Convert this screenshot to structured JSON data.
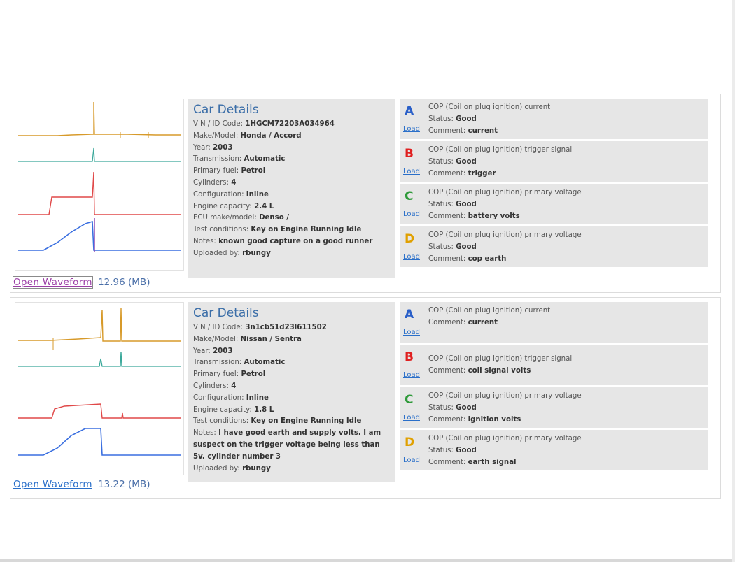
{
  "records": [
    {
      "car_details": {
        "heading": "Car Details",
        "vin": {
          "label": "VIN / ID Code:",
          "value": "1HGCM72203A034964"
        },
        "make_model": {
          "label": "Make/Model:",
          "value": "Honda / Accord"
        },
        "year": {
          "label": "Year:",
          "value": "2003"
        },
        "transmission": {
          "label": "Transmission:",
          "value": "Automatic"
        },
        "primary_fuel": {
          "label": "Primary fuel:",
          "value": "Petrol"
        },
        "cylinders": {
          "label": "Cylinders:",
          "value": "4"
        },
        "configuration": {
          "label": "Configuration:",
          "value": "Inline"
        },
        "engine_capacity": {
          "label": "Engine capacity:",
          "value": "2.4 L"
        },
        "ecu": {
          "label": "ECU make/model:",
          "value": "Denso /"
        },
        "test_conditions": {
          "label": "Test conditions:",
          "value": "Key on Engine Running Idle"
        },
        "notes": {
          "label": "Notes:",
          "value": "known good capture on a good runner"
        },
        "uploaded_by": {
          "label": "Uploaded by:",
          "value": "rbungy"
        }
      },
      "open_waveform": {
        "label": "Open Waveform",
        "size": "12.96 (MB)"
      },
      "channels": [
        {
          "letter": "A",
          "color": "#2a5fc8",
          "title": "COP (Coil on plug ignition) current",
          "status_label": "Status:",
          "status": "Good",
          "comment_label": "Comment:",
          "comment": "current",
          "load": "Load"
        },
        {
          "letter": "B",
          "color": "#e02020",
          "title": "COP (Coil on plug ignition) trigger signal",
          "status_label": "Status:",
          "status": "Good",
          "comment_label": "Comment:",
          "comment": "trigger",
          "load": "Load"
        },
        {
          "letter": "C",
          "color": "#2f9a3a",
          "title": "COP (Coil on plug ignition) primary voltage",
          "status_label": "Status:",
          "status": "Good",
          "comment_label": "Comment:",
          "comment": "battery volts",
          "load": "Load"
        },
        {
          "letter": "D",
          "color": "#e0a000",
          "title": "COP (Coil on plug ignition) primary voltage",
          "status_label": "Status:",
          "status": "Good",
          "comment_label": "Comment:",
          "comment": "cop earth",
          "load": "Load"
        }
      ]
    },
    {
      "car_details": {
        "heading": "Car Details",
        "vin": {
          "label": "VIN / ID Code:",
          "value": "3n1cb51d23l611502"
        },
        "make_model": {
          "label": "Make/Model:",
          "value": "Nissan / Sentra"
        },
        "year": {
          "label": "Year:",
          "value": "2003"
        },
        "transmission": {
          "label": "Transmission:",
          "value": "Automatic"
        },
        "primary_fuel": {
          "label": "Primary fuel:",
          "value": "Petrol"
        },
        "cylinders": {
          "label": "Cylinders:",
          "value": "4"
        },
        "configuration": {
          "label": "Configuration:",
          "value": "Inline"
        },
        "engine_capacity": {
          "label": "Engine capacity:",
          "value": "1.8 L"
        },
        "test_conditions": {
          "label": "Test conditions:",
          "value": "Key on Engine Running Idle"
        },
        "notes": {
          "label": "Notes:",
          "value": "I have good earth and supply volts. I am suspect on the trigger voltage being less than 5v. cylinder number 3"
        },
        "uploaded_by": {
          "label": "Uploaded by:",
          "value": "rbungy"
        }
      },
      "open_waveform": {
        "label": "Open Waveform",
        "size": "13.22 (MB)"
      },
      "channels": [
        {
          "letter": "A",
          "color": "#2a5fc8",
          "title": "COP (Coil on plug ignition) current",
          "status_label": "",
          "status": "",
          "comment_label": "Comment:",
          "comment": "current",
          "load": "Load"
        },
        {
          "letter": "B",
          "color": "#e02020",
          "title": "COP (Coil on plug ignition) trigger signal",
          "status_label": "",
          "status": "",
          "comment_label": "Comment:",
          "comment": "coil signal volts",
          "load": "Load"
        },
        {
          "letter": "C",
          "color": "#2f9a3a",
          "title": "COP (Coil on plug ignition) primary voltage",
          "status_label": "Status:",
          "status": "Good",
          "comment_label": "Comment:",
          "comment": "ignition volts",
          "load": "Load"
        },
        {
          "letter": "D",
          "color": "#e0a000",
          "title": "COP (Coil on plug ignition) primary voltage",
          "status_label": "Status:",
          "status": "Good",
          "comment_label": "Comment:",
          "comment": "earth signal",
          "load": "Load"
        }
      ]
    }
  ]
}
